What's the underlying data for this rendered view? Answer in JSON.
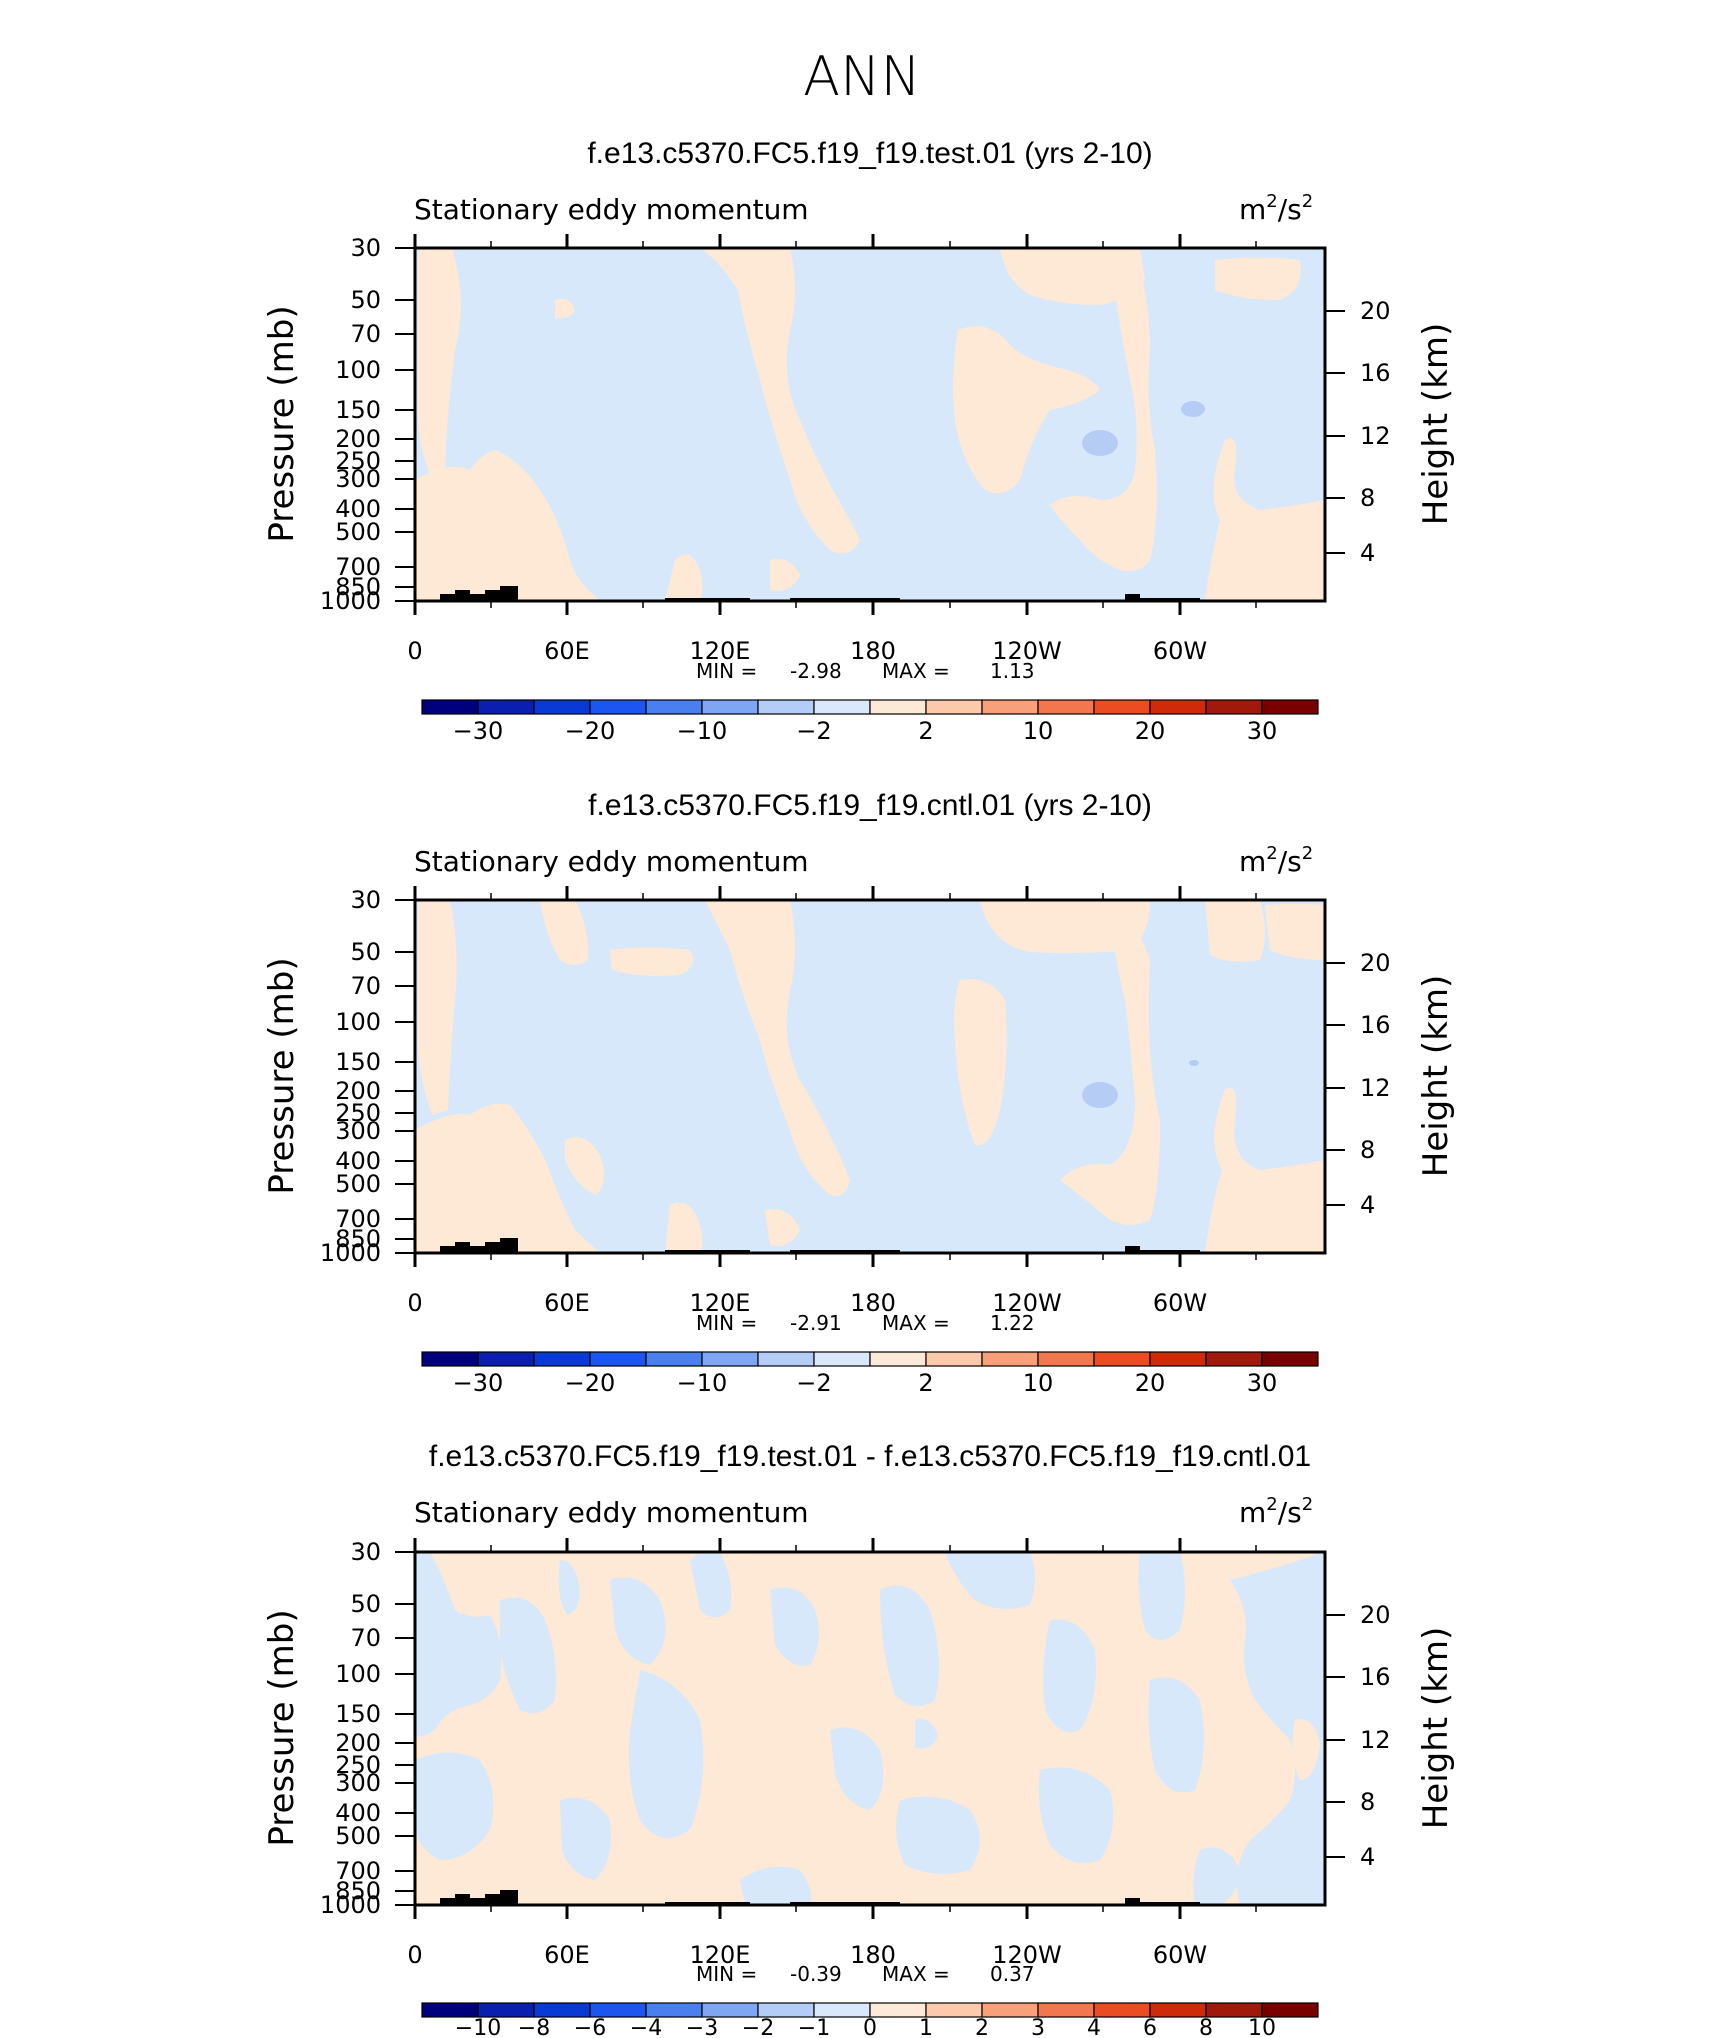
{
  "page_title": "ANN",
  "chart_data": [
    {
      "type": "contour",
      "title": "f.e13.c5370.FC5.f19_f19.test.01 (yrs 2-10)",
      "variable": "Stationary eddy momentum",
      "units_base": "m",
      "units_mid": "/s",
      "units_exp": "2",
      "ylabel": "Pressure (mb)",
      "y2label": "Height (km)",
      "x_ticks": [
        "0",
        "60E",
        "120E",
        "180",
        "120W",
        "60W"
      ],
      "y_ticks": [
        "30",
        "50",
        "70",
        "100",
        "150",
        "200",
        "250",
        "300",
        "400",
        "500",
        "700",
        "850",
        "1000"
      ],
      "y2_ticks": [
        "20",
        "16",
        "12",
        "8",
        "4"
      ],
      "min_label": "MIN =",
      "min_value": "-2.98",
      "max_label": "MAX =",
      "max_value": "1.13",
      "colorbar_labels": [
        "−30",
        "−20",
        "−10",
        "−2",
        "2",
        "10",
        "20",
        "30"
      ]
    },
    {
      "type": "contour",
      "title": "f.e13.c5370.FC5.f19_f19.cntl.01 (yrs 2-10)",
      "variable": "Stationary eddy momentum",
      "units_base": "m",
      "units_mid": "/s",
      "units_exp": "2",
      "ylabel": "Pressure (mb)",
      "y2label": "Height (km)",
      "x_ticks": [
        "0",
        "60E",
        "120E",
        "180",
        "120W",
        "60W"
      ],
      "y_ticks": [
        "30",
        "50",
        "70",
        "100",
        "150",
        "200",
        "250",
        "300",
        "400",
        "500",
        "700",
        "850",
        "1000"
      ],
      "y2_ticks": [
        "20",
        "16",
        "12",
        "8",
        "4"
      ],
      "min_label": "MIN =",
      "min_value": "-2.91",
      "max_label": "MAX =",
      "max_value": "1.22",
      "colorbar_labels": [
        "−30",
        "−20",
        "−10",
        "−2",
        "2",
        "10",
        "20",
        "30"
      ]
    },
    {
      "type": "contour",
      "title": "f.e13.c5370.FC5.f19_f19.test.01 - f.e13.c5370.FC5.f19_f19.cntl.01",
      "variable": "Stationary eddy momentum",
      "units_base": "m",
      "units_mid": "/s",
      "units_exp": "2",
      "ylabel": "Pressure (mb)",
      "y2label": "Height (km)",
      "x_ticks": [
        "0",
        "60E",
        "120E",
        "180",
        "120W",
        "60W"
      ],
      "y_ticks": [
        "30",
        "50",
        "70",
        "100",
        "150",
        "200",
        "250",
        "300",
        "400",
        "500",
        "700",
        "850",
        "1000"
      ],
      "y2_ticks": [
        "20",
        "16",
        "12",
        "8",
        "4"
      ],
      "min_label": "MIN =",
      "min_value": "-0.39",
      "max_label": "MAX =",
      "max_value": "0.37",
      "colorbar_labels": [
        "−10",
        "−8",
        "−6",
        "−4",
        "−3",
        "−2",
        "−1",
        "0",
        "1",
        "2",
        "3",
        "4",
        "6",
        "8",
        "10"
      ]
    }
  ],
  "colorbar_colors": [
    "#00007f",
    "#0a1fb0",
    "#0a3ad6",
    "#1d55f0",
    "#4a7ff0",
    "#7fa6f3",
    "#b3cdf7",
    "#d9e9fb",
    "#fde9d8",
    "#fcc9ab",
    "#f8a07a",
    "#f3774e",
    "#ec4c22",
    "#cf2b0b",
    "#a1190b",
    "#7a0000"
  ],
  "fill_colors": {
    "negative": "#d8e8fb",
    "positive": "#fee9d7",
    "deep_negative": "#b5ccf5",
    "terrain": "#000000"
  }
}
